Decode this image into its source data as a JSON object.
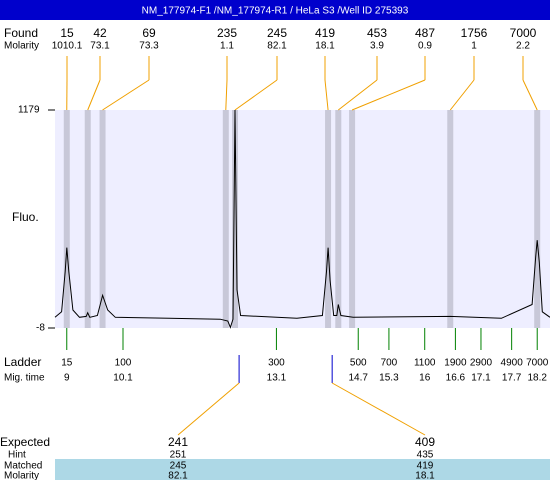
{
  "header": {
    "title": "NM_177974-F1 /NM_177974-R1 / HeLa S3 /Well ID 275393"
  },
  "chart_data": {
    "type": "line",
    "ylabel": "Fluo.",
    "ylim": [
      -8,
      1179
    ],
    "yticks": [
      -8,
      1179
    ],
    "xlim": [
      8.77,
      18.45
    ],
    "color": "#000000",
    "x": [
      8.77,
      8.9,
      8.97,
      9.0,
      9.04,
      9.12,
      9.25,
      9.38,
      9.41,
      9.45,
      9.6,
      9.7,
      9.8,
      9.95,
      11,
      12.0,
      12.15,
      12.2,
      12.25,
      12.29,
      12.33,
      12.4,
      13.5,
      14.0,
      14.08,
      14.11,
      14.15,
      14.22,
      14.28,
      14.31,
      14.36,
      14.6,
      16.5,
      17.5,
      18.1,
      18.17,
      18.2,
      18.24,
      18.3,
      18.45
    ],
    "values": [
      50,
      80,
      300,
      430,
      300,
      90,
      50,
      55,
      75,
      50,
      60,
      170,
      90,
      50,
      45,
      40,
      30,
      -5,
      40,
      1179,
      200,
      60,
      45,
      60,
      300,
      430,
      250,
      60,
      60,
      120,
      60,
      50,
      55,
      45,
      120,
      380,
      470,
      350,
      80,
      50
    ],
    "found": {
      "label": "Found",
      "sublabel": "Molarity",
      "sizes": [
        15,
        42,
        69,
        235,
        245,
        419,
        453,
        487,
        1756,
        7000
      ],
      "molarity": [
        1010.1,
        73.1,
        73.3,
        1.1,
        82.1,
        18.1,
        3.9,
        0.9,
        1,
        2.2
      ],
      "x": [
        9.0,
        9.41,
        9.7,
        12.11,
        12.29,
        14.11,
        14.31,
        14.58,
        16.5,
        18.2
      ],
      "color": "#f0a000"
    },
    "ladder": {
      "label": "Ladder",
      "sublabel": "Mig. time",
      "sizes": [
        15,
        100,
        300,
        500,
        700,
        1100,
        1900,
        2900,
        4900,
        7000
      ],
      "x": [
        9,
        10.1,
        13.1,
        14.7,
        15.3,
        16,
        16.6,
        17.1,
        17.7,
        18.2
      ],
      "color": "#008000"
    },
    "expected": {
      "labels": [
        "Expected",
        "Hint",
        "Matched",
        "Molarity"
      ],
      "x": [
        12.37,
        14.19
      ],
      "values": [
        241,
        409
      ],
      "hint": [
        251,
        435
      ],
      "matched": [
        245,
        419
      ],
      "molarity": [
        82.1,
        18.1
      ],
      "color": "#0000cc"
    }
  }
}
